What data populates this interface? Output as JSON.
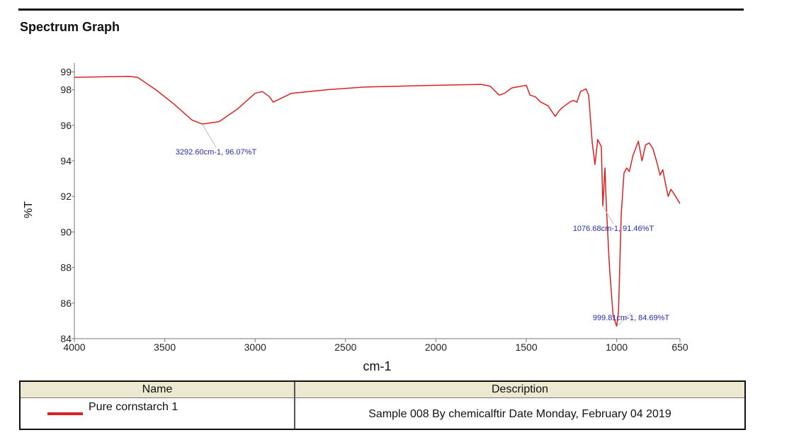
{
  "title": "Spectrum Graph",
  "chart_data": {
    "type": "line",
    "title": "Spectrum Graph",
    "xlabel": "cm-1",
    "ylabel": "%T",
    "xlim": [
      4000,
      650
    ],
    "ylim": [
      84,
      99.5
    ],
    "xticks": [
      4000,
      3500,
      3000,
      2500,
      2000,
      1500,
      1000,
      650
    ],
    "yticks": [
      84,
      86,
      88,
      90,
      92,
      94,
      96,
      98,
      99
    ],
    "grid": false,
    "series": [
      {
        "name": "Pure cornstarch 1",
        "color": "#e02020",
        "x": [
          4000,
          3700,
          3650,
          3550,
          3450,
          3350,
          3292.6,
          3200,
          3100,
          3000,
          2960,
          2920,
          2900,
          2860,
          2800,
          2600,
          2400,
          2000,
          1750,
          1700,
          1650,
          1620,
          1580,
          1500,
          1480,
          1450,
          1420,
          1400,
          1380,
          1360,
          1340,
          1320,
          1300,
          1260,
          1240,
          1220,
          1200,
          1170,
          1155,
          1135,
          1120,
          1105,
          1095,
          1085,
          1076.68,
          1065,
          1055,
          1040,
          1020,
          999.81,
          990,
          975,
          960,
          945,
          930,
          910,
          880,
          860,
          840,
          820,
          800,
          780,
          760,
          745,
          730,
          715,
          700,
          680,
          650
        ],
        "y": [
          98.7,
          98.75,
          98.7,
          98.0,
          97.2,
          96.3,
          96.07,
          96.2,
          96.9,
          97.8,
          97.9,
          97.6,
          97.3,
          97.5,
          97.8,
          98.0,
          98.15,
          98.25,
          98.3,
          98.2,
          97.7,
          97.8,
          98.1,
          98.25,
          97.7,
          97.6,
          97.3,
          97.2,
          97.1,
          96.8,
          96.5,
          96.8,
          97.0,
          97.3,
          97.4,
          97.3,
          97.9,
          98.05,
          97.7,
          95.0,
          93.8,
          95.2,
          95.0,
          94.8,
          91.46,
          93.6,
          91.0,
          88.0,
          85.3,
          84.69,
          85.5,
          91.0,
          93.3,
          93.6,
          93.4,
          94.3,
          95.1,
          94.0,
          94.9,
          95.0,
          94.7,
          94.0,
          93.2,
          93.5,
          92.7,
          92.0,
          92.4,
          92.1,
          91.6
        ]
      }
    ],
    "annotations": [
      {
        "x": 3292.6,
        "y": 96.07,
        "text": "3292.60cm-1, 96.07%T"
      },
      {
        "x": 1076.68,
        "y": 91.46,
        "text": "1076.68cm-1, 91.46%T"
      },
      {
        "x": 999.81,
        "y": 84.69,
        "text": "999.81cm-1, 84.69%T"
      }
    ]
  },
  "table": {
    "headers": {
      "name": "Name",
      "description": "Description"
    },
    "row": {
      "name": "Pure cornstarch 1",
      "description": "Sample 008 By chemicalftir Date Monday, February 04 2019",
      "swatch_color": "#e02020"
    }
  }
}
